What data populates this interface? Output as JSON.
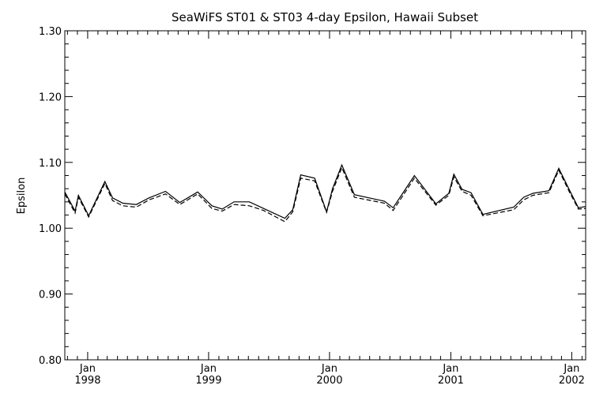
{
  "chart_data": {
    "type": "line",
    "title": "SeaWiFS ST01 & ST03 4-day Epsilon, Hawaii Subset",
    "xlabel": "",
    "ylabel": "Epsilon",
    "ylim": [
      0.8,
      1.3
    ],
    "xlim": [
      "1997-10-24",
      "2002-02-12"
    ],
    "yticks": [
      "0.80",
      "0.90",
      "1.00",
      "1.10",
      "1.20",
      "1.30"
    ],
    "xticks": [
      {
        "date": "1998-01-01",
        "month": "Jan",
        "year": "1998"
      },
      {
        "date": "1999-01-01",
        "month": "Jan",
        "year": "1999"
      },
      {
        "date": "2000-01-01",
        "month": "Jan",
        "year": "2000"
      },
      {
        "date": "2001-01-01",
        "month": "Jan",
        "year": "2001"
      },
      {
        "date": "2002-01-01",
        "month": "Jan",
        "year": "2002"
      }
    ],
    "grid": false,
    "x": [
      "1997-10-24",
      "1997-11-24",
      "1997-12-04",
      "1998-01-04",
      "1998-02-22",
      "1998-03-17",
      "1998-04-17",
      "1998-05-28",
      "1998-07-05",
      "1998-08-24",
      "1998-10-06",
      "1998-11-29",
      "1999-01-11",
      "1999-02-11",
      "1999-03-19",
      "1999-05-04",
      "1999-06-16",
      "1999-08-19",
      "1999-09-12",
      "1999-10-06",
      "1999-11-17",
      "1999-12-23",
      "2000-01-10",
      "2000-02-07",
      "2000-03-16",
      "2000-06-15",
      "2000-07-11",
      "2000-09-13",
      "2000-11-17",
      "2000-12-26",
      "2001-01-10",
      "2001-02-04",
      "2001-03-03",
      "2001-04-08",
      "2001-07-10",
      "2001-08-09",
      "2001-09-06",
      "2001-10-24",
      "2001-11-23",
      "2001-12-26",
      "2002-01-21",
      "2002-02-12"
    ],
    "series": [
      {
        "values": [
          1.055,
          1.026,
          1.05,
          1.019,
          1.071,
          1.046,
          1.038,
          1.036,
          1.046,
          1.056,
          1.039,
          1.055,
          1.034,
          1.029,
          1.04,
          1.04,
          1.03,
          1.015,
          1.028,
          1.081,
          1.076,
          1.025,
          1.06,
          1.096,
          1.051,
          1.041,
          1.031,
          1.08,
          1.037,
          1.053,
          1.082,
          1.059,
          1.054,
          1.021,
          1.032,
          1.047,
          1.053,
          1.057,
          1.091,
          1.057,
          1.031,
          1.033
        ],
        "style": "solid"
      },
      {
        "values": [
          1.052,
          1.023,
          1.047,
          1.017,
          1.068,
          1.042,
          1.034,
          1.032,
          1.043,
          1.052,
          1.036,
          1.052,
          1.03,
          1.026,
          1.036,
          1.034,
          1.027,
          1.01,
          1.025,
          1.076,
          1.072,
          1.024,
          1.056,
          1.092,
          1.047,
          1.038,
          1.027,
          1.076,
          1.035,
          1.05,
          1.078,
          1.056,
          1.05,
          1.019,
          1.028,
          1.043,
          1.05,
          1.054,
          1.088,
          1.054,
          1.029,
          1.03
        ],
        "style": "dashed"
      }
    ]
  }
}
